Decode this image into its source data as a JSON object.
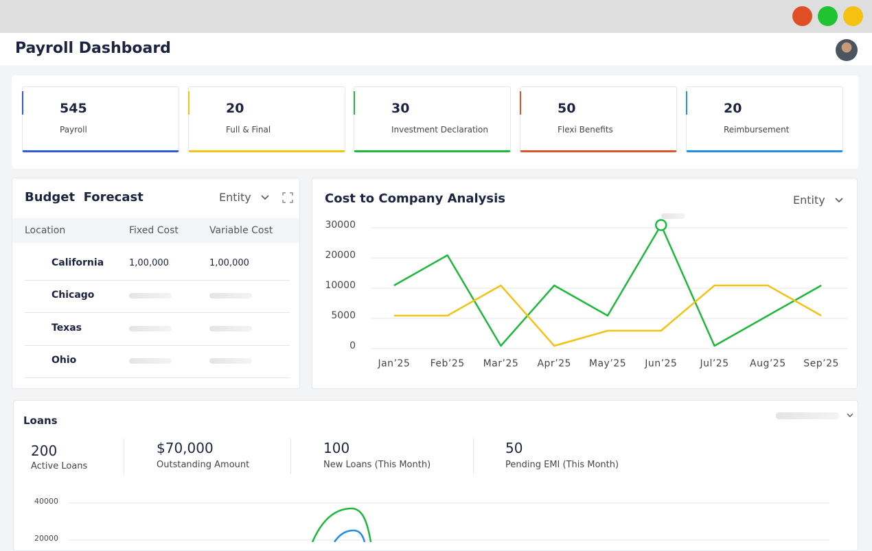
{
  "header": {
    "title": "Payroll Dashboard"
  },
  "stats": [
    {
      "value": "545",
      "label": "Payroll",
      "color": "#3358e0"
    },
    {
      "value": "20",
      "label": "Full & Final",
      "color": "#f2c314"
    },
    {
      "value": "30",
      "label": "Investment Declaration",
      "color": "#1db83a"
    },
    {
      "value": "50",
      "label": "Flexi Benefits",
      "color": "#d9542b"
    },
    {
      "value": "20",
      "label": "Reimbursement",
      "color": "#1e8fe6"
    }
  ],
  "budget_forecast": {
    "title": "Budget  Forecast",
    "filter": "Entity",
    "columns": [
      "Location",
      "Fixed Cost",
      "Variable Cost"
    ],
    "rows": [
      {
        "location": "California",
        "fixed": "1,00,000",
        "variable": "1,00,000",
        "color": "#3358e0"
      },
      {
        "location": "Chicago",
        "color": "#1db83a"
      },
      {
        "location": "Texas",
        "color": "#e0b012"
      },
      {
        "location": "Ohio",
        "color": "#d9542b"
      }
    ]
  },
  "ctc_filter": "Entity",
  "loans": {
    "title": "Loans",
    "stats": [
      {
        "value": "200",
        "label": "Active Loans"
      },
      {
        "value": "$70,000",
        "label": "Outstanding Amount"
      },
      {
        "value": "100",
        "label": "New Loans (This Month)"
      },
      {
        "value": "50",
        "label": "Pending EMI (This Month)"
      }
    ]
  },
  "chart_data": [
    {
      "type": "line",
      "title": "Cost to Company Analysis",
      "categories": [
        "Jan’25",
        "Feb’25",
        "Mar’25",
        "Apr’25",
        "May’25",
        "Jun’25",
        "Jul’25",
        "Aug’25",
        "Sep’25"
      ],
      "series": [
        {
          "color": "#1db83a",
          "values": [
            10000,
            20000,
            0,
            10000,
            5000,
            30000,
            0,
            5000,
            10000
          ]
        },
        {
          "color": "#f2c314",
          "values": [
            5000,
            5000,
            10000,
            0,
            2500,
            2500,
            10000,
            10000,
            5000
          ]
        }
      ],
      "highlight": 5,
      "ylim": [
        0,
        30000
      ],
      "yticks": [
        0,
        5000,
        10000,
        20000,
        30000
      ],
      "grid": true
    },
    {
      "type": "line",
      "ylim": [
        0,
        40000
      ],
      "yticks": [
        40000,
        20000
      ],
      "grid": true
    }
  ]
}
